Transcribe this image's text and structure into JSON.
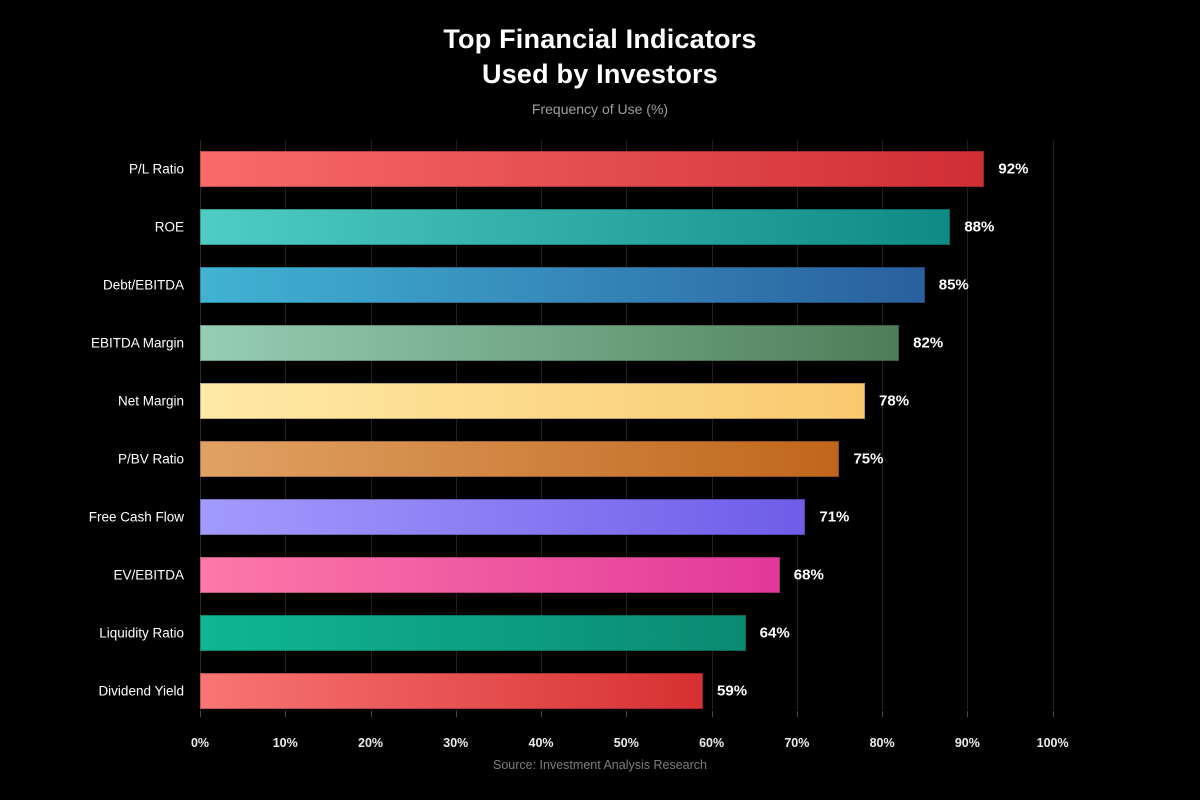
{
  "header": {
    "title_line1": "Top Financial Indicators",
    "title_line2": "Used by Investors",
    "subtitle": "Frequency of Use (%)"
  },
  "footer": {
    "source": "Source: Investment Analysis Research"
  },
  "chart_data": {
    "type": "bar",
    "orientation": "horizontal",
    "title": "Top Financial Indicators Used by Investors",
    "subtitle": "Frequency of Use (%)",
    "xlabel": "",
    "ylabel": "",
    "categories": [
      "P/L Ratio",
      "ROE",
      "Debt/EBITDA",
      "EBITDA Margin",
      "Net Margin",
      "P/BV Ratio",
      "Free Cash Flow",
      "EV/EBITDA",
      "Liquidity Ratio",
      "Dividend Yield"
    ],
    "values": [
      92,
      88,
      85,
      82,
      78,
      75,
      71,
      68,
      64,
      59
    ],
    "value_labels": [
      "92%",
      "88%",
      "85%",
      "82%",
      "78%",
      "75%",
      "71%",
      "68%",
      "64%",
      "59%"
    ],
    "bar_gradients": [
      {
        "start": "#f96b6b",
        "end": "#cf2e35"
      },
      {
        "start": "#4ecdc4",
        "end": "#0f8a85"
      },
      {
        "start": "#41b3d3",
        "end": "#2a5f9e"
      },
      {
        "start": "#96ceb4",
        "end": "#4e7d58"
      },
      {
        "start": "#ffeaa7",
        "end": "#f9c96e"
      },
      {
        "start": "#e0a264",
        "end": "#c0661c"
      },
      {
        "start": "#a29bfe",
        "end": "#6f5de8"
      },
      {
        "start": "#fd79a8",
        "end": "#e2389a"
      },
      {
        "start": "#0fb694",
        "end": "#0b8a72"
      },
      {
        "start": "#f97575",
        "end": "#d63031"
      }
    ],
    "xlim": [
      0,
      114
    ],
    "x_tick_values": [
      0,
      10,
      20,
      30,
      40,
      50,
      60,
      70,
      80,
      90,
      100
    ],
    "x_tick_labels": [
      "0%",
      "10%",
      "20%",
      "30%",
      "40%",
      "50%",
      "60%",
      "70%",
      "80%",
      "90%",
      "100%"
    ],
    "grid": "vertical",
    "legend": "none",
    "background_color": "#000000",
    "text_color": "#ffffff",
    "subtitle_color": "#9e9e9e",
    "grid_color": "#1f1f1f",
    "source": "Source: Investment Analysis Research"
  }
}
